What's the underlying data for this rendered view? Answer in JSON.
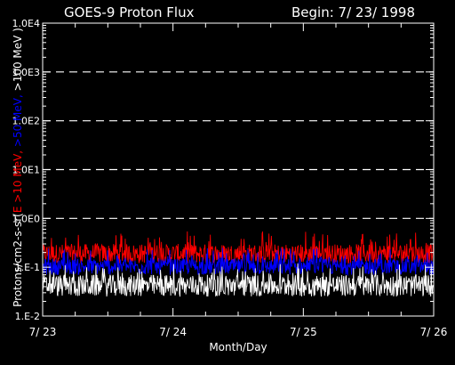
{
  "chart_data": {
    "type": "line",
    "title": "GOES-9 Proton Flux",
    "begin_label": "Begin: 7/ 23/ 1998",
    "xlabel": "Month/Day",
    "ylabel_parts": [
      {
        "text": "Protons/cm2-s-sr(",
        "color": "#ffffff"
      },
      {
        "text": "E >10 MeV, ",
        "color": "#ff0000"
      },
      {
        "text": ">50 MeV, ",
        "color": "#0000ff"
      },
      {
        "text": ">100 MeV )",
        "color": "#ffffff"
      }
    ],
    "y_scale": "log",
    "ylim": [
      0.01,
      10000
    ],
    "y_ticks": [
      {
        "value": 0.01,
        "label": "1.E-2"
      },
      {
        "value": 0.1,
        "label": "1.E-1"
      },
      {
        "value": 1,
        "label": "1.0E0"
      },
      {
        "value": 10,
        "label": "1.0E1"
      },
      {
        "value": 100,
        "label": "1.0E2"
      },
      {
        "value": 1000,
        "label": "1.0E3"
      },
      {
        "value": 10000,
        "label": "1.0E4"
      }
    ],
    "grid_dashed_at": [
      1,
      10,
      100,
      1000
    ],
    "x_range": [
      "1998-07-23",
      "1998-07-26"
    ],
    "x_ticks": [
      {
        "value": "1998-07-23",
        "label": "7/ 23"
      },
      {
        "value": "1998-07-24",
        "label": "7/ 24"
      },
      {
        "value": "1998-07-25",
        "label": "7/ 25"
      },
      {
        "value": "1998-07-26",
        "label": "7/ 26"
      }
    ],
    "series": [
      {
        "name": "E >10 MeV",
        "color": "#ff0000",
        "typical_low": 0.12,
        "typical_high": 0.3,
        "peak_high": 0.55
      },
      {
        "name": ">50 MeV",
        "color": "#0000ff",
        "typical_low": 0.07,
        "typical_high": 0.15,
        "peak_high": 0.25
      },
      {
        "name": ">100 MeV",
        "color": "#ffffff",
        "typical_low": 0.025,
        "typical_high": 0.07,
        "peak_high": 0.12
      }
    ]
  }
}
